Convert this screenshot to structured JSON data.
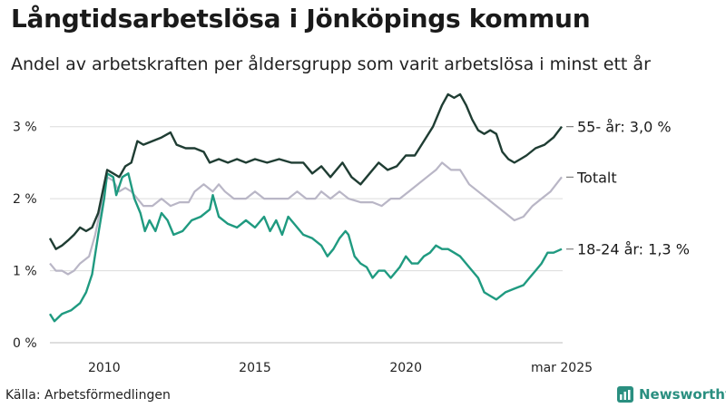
{
  "title": "Långtidsarbetslösa i Jönköpings kommun",
  "subtitle": "Andel av arbetskraften per åldersgrupp som varit arbetslösa i minst ett år",
  "source": "Källa: Arbetsförmedlingen",
  "brand": "Newsworthy",
  "colors": {
    "s55": "#1f3d33",
    "total": "#b9b6c6",
    "s1824": "#1f9a80",
    "grid": "#dcdcdc",
    "brand": "#2a8f80"
  },
  "chart_data": {
    "type": "line",
    "title": "Långtidsarbetslösa i Jönköpings kommun",
    "subtitle": "Andel av arbetskraften per åldersgrupp som varit arbetslösa i minst ett år",
    "xlabel": "",
    "ylabel": "",
    "xlim": [
      2008.2,
      2025.2
    ],
    "ylim": [
      0,
      3.5
    ],
    "x_ticks": [
      {
        "value": 2010,
        "label": "2010"
      },
      {
        "value": 2015,
        "label": "2015"
      },
      {
        "value": 2020,
        "label": "2020"
      },
      {
        "value": 2025.17,
        "label": "mar 2025"
      }
    ],
    "y_ticks": [
      {
        "value": 0,
        "label": "0 %"
      },
      {
        "value": 1,
        "label": "1 %"
      },
      {
        "value": 2,
        "label": "2 %"
      },
      {
        "value": 3,
        "label": "3 %"
      }
    ],
    "grid": true,
    "legend": "end-labels",
    "series": [
      {
        "key": "s55",
        "end_label": "55- år: 3,0 %",
        "points": [
          [
            2008.2,
            1.45
          ],
          [
            2008.4,
            1.3
          ],
          [
            2008.6,
            1.35
          ],
          [
            2008.8,
            1.42
          ],
          [
            2009.0,
            1.5
          ],
          [
            2009.2,
            1.6
          ],
          [
            2009.4,
            1.55
          ],
          [
            2009.6,
            1.6
          ],
          [
            2009.8,
            1.8
          ],
          [
            2010.0,
            2.2
          ],
          [
            2010.1,
            2.4
          ],
          [
            2010.3,
            2.35
          ],
          [
            2010.5,
            2.3
          ],
          [
            2010.7,
            2.45
          ],
          [
            2010.9,
            2.5
          ],
          [
            2011.1,
            2.8
          ],
          [
            2011.3,
            2.75
          ],
          [
            2011.6,
            2.8
          ],
          [
            2011.9,
            2.85
          ],
          [
            2012.2,
            2.92
          ],
          [
            2012.4,
            2.75
          ],
          [
            2012.7,
            2.7
          ],
          [
            2013.0,
            2.7
          ],
          [
            2013.3,
            2.65
          ],
          [
            2013.5,
            2.5
          ],
          [
            2013.8,
            2.55
          ],
          [
            2014.1,
            2.5
          ],
          [
            2014.4,
            2.55
          ],
          [
            2014.7,
            2.5
          ],
          [
            2015.0,
            2.55
          ],
          [
            2015.4,
            2.5
          ],
          [
            2015.8,
            2.55
          ],
          [
            2016.2,
            2.5
          ],
          [
            2016.6,
            2.5
          ],
          [
            2016.9,
            2.35
          ],
          [
            2017.2,
            2.45
          ],
          [
            2017.5,
            2.3
          ],
          [
            2017.9,
            2.5
          ],
          [
            2018.2,
            2.3
          ],
          [
            2018.5,
            2.2
          ],
          [
            2018.8,
            2.35
          ],
          [
            2019.1,
            2.5
          ],
          [
            2019.4,
            2.4
          ],
          [
            2019.7,
            2.45
          ],
          [
            2020.0,
            2.6
          ],
          [
            2020.3,
            2.6
          ],
          [
            2020.6,
            2.8
          ],
          [
            2020.9,
            3.0
          ],
          [
            2021.2,
            3.3
          ],
          [
            2021.4,
            3.45
          ],
          [
            2021.6,
            3.4
          ],
          [
            2021.8,
            3.45
          ],
          [
            2022.0,
            3.3
          ],
          [
            2022.2,
            3.1
          ],
          [
            2022.4,
            2.95
          ],
          [
            2022.6,
            2.9
          ],
          [
            2022.8,
            2.95
          ],
          [
            2023.0,
            2.9
          ],
          [
            2023.2,
            2.65
          ],
          [
            2023.4,
            2.55
          ],
          [
            2023.6,
            2.5
          ],
          [
            2023.8,
            2.55
          ],
          [
            2024.0,
            2.6
          ],
          [
            2024.3,
            2.7
          ],
          [
            2024.6,
            2.75
          ],
          [
            2024.9,
            2.85
          ],
          [
            2025.17,
            3.0
          ]
        ]
      },
      {
        "key": "total",
        "end_label": "Totalt",
        "points": [
          [
            2008.2,
            1.1
          ],
          [
            2008.4,
            1.0
          ],
          [
            2008.6,
            1.0
          ],
          [
            2008.8,
            0.95
          ],
          [
            2009.0,
            1.0
          ],
          [
            2009.2,
            1.1
          ],
          [
            2009.5,
            1.2
          ],
          [
            2009.7,
            1.5
          ],
          [
            2009.9,
            1.9
          ],
          [
            2010.1,
            2.3
          ],
          [
            2010.3,
            2.25
          ],
          [
            2010.5,
            2.1
          ],
          [
            2010.7,
            2.15
          ],
          [
            2010.9,
            2.1
          ],
          [
            2011.1,
            2.0
          ],
          [
            2011.3,
            1.9
          ],
          [
            2011.6,
            1.9
          ],
          [
            2011.9,
            2.0
          ],
          [
            2012.2,
            1.9
          ],
          [
            2012.5,
            1.95
          ],
          [
            2012.8,
            1.95
          ],
          [
            2013.0,
            2.1
          ],
          [
            2013.3,
            2.2
          ],
          [
            2013.6,
            2.1
          ],
          [
            2013.8,
            2.2
          ],
          [
            2014.0,
            2.1
          ],
          [
            2014.3,
            2.0
          ],
          [
            2014.7,
            2.0
          ],
          [
            2015.0,
            2.1
          ],
          [
            2015.3,
            2.0
          ],
          [
            2015.8,
            2.0
          ],
          [
            2016.1,
            2.0
          ],
          [
            2016.4,
            2.1
          ],
          [
            2016.7,
            2.0
          ],
          [
            2017.0,
            2.0
          ],
          [
            2017.2,
            2.1
          ],
          [
            2017.5,
            2.0
          ],
          [
            2017.8,
            2.1
          ],
          [
            2018.1,
            2.0
          ],
          [
            2018.5,
            1.95
          ],
          [
            2018.9,
            1.95
          ],
          [
            2019.2,
            1.9
          ],
          [
            2019.5,
            2.0
          ],
          [
            2019.8,
            2.0
          ],
          [
            2020.1,
            2.1
          ],
          [
            2020.4,
            2.2
          ],
          [
            2020.7,
            2.3
          ],
          [
            2021.0,
            2.4
          ],
          [
            2021.2,
            2.5
          ],
          [
            2021.5,
            2.4
          ],
          [
            2021.8,
            2.4
          ],
          [
            2022.1,
            2.2
          ],
          [
            2022.4,
            2.1
          ],
          [
            2022.7,
            2.0
          ],
          [
            2023.0,
            1.9
          ],
          [
            2023.3,
            1.8
          ],
          [
            2023.6,
            1.7
          ],
          [
            2023.9,
            1.75
          ],
          [
            2024.2,
            1.9
          ],
          [
            2024.5,
            2.0
          ],
          [
            2024.8,
            2.1
          ],
          [
            2025.17,
            2.3
          ]
        ]
      },
      {
        "key": "s1824",
        "end_label": "18-24 år: 1,3 %",
        "points": [
          [
            2008.2,
            0.4
          ],
          [
            2008.35,
            0.3
          ],
          [
            2008.6,
            0.4
          ],
          [
            2008.9,
            0.45
          ],
          [
            2009.2,
            0.55
          ],
          [
            2009.4,
            0.7
          ],
          [
            2009.6,
            0.95
          ],
          [
            2009.8,
            1.5
          ],
          [
            2010.0,
            2.0
          ],
          [
            2010.1,
            2.35
          ],
          [
            2010.3,
            2.3
          ],
          [
            2010.4,
            2.05
          ],
          [
            2010.6,
            2.3
          ],
          [
            2010.8,
            2.35
          ],
          [
            2011.0,
            2.0
          ],
          [
            2011.2,
            1.8
          ],
          [
            2011.35,
            1.55
          ],
          [
            2011.5,
            1.7
          ],
          [
            2011.7,
            1.55
          ],
          [
            2011.9,
            1.8
          ],
          [
            2012.1,
            1.7
          ],
          [
            2012.3,
            1.5
          ],
          [
            2012.6,
            1.55
          ],
          [
            2012.9,
            1.7
          ],
          [
            2013.2,
            1.75
          ],
          [
            2013.5,
            1.85
          ],
          [
            2013.6,
            2.05
          ],
          [
            2013.8,
            1.75
          ],
          [
            2014.1,
            1.65
          ],
          [
            2014.4,
            1.6
          ],
          [
            2014.7,
            1.7
          ],
          [
            2015.0,
            1.6
          ],
          [
            2015.3,
            1.75
          ],
          [
            2015.5,
            1.55
          ],
          [
            2015.7,
            1.7
          ],
          [
            2015.9,
            1.5
          ],
          [
            2016.1,
            1.75
          ],
          [
            2016.3,
            1.65
          ],
          [
            2016.6,
            1.5
          ],
          [
            2016.9,
            1.45
          ],
          [
            2017.2,
            1.35
          ],
          [
            2017.4,
            1.2
          ],
          [
            2017.6,
            1.3
          ],
          [
            2017.8,
            1.45
          ],
          [
            2018.0,
            1.55
          ],
          [
            2018.1,
            1.5
          ],
          [
            2018.3,
            1.2
          ],
          [
            2018.5,
            1.1
          ],
          [
            2018.7,
            1.05
          ],
          [
            2018.9,
            0.9
          ],
          [
            2019.1,
            1.0
          ],
          [
            2019.3,
            1.0
          ],
          [
            2019.5,
            0.9
          ],
          [
            2019.8,
            1.05
          ],
          [
            2020.0,
            1.2
          ],
          [
            2020.2,
            1.1
          ],
          [
            2020.4,
            1.1
          ],
          [
            2020.6,
            1.2
          ],
          [
            2020.8,
            1.25
          ],
          [
            2021.0,
            1.35
          ],
          [
            2021.2,
            1.3
          ],
          [
            2021.4,
            1.3
          ],
          [
            2021.6,
            1.25
          ],
          [
            2021.8,
            1.2
          ],
          [
            2022.0,
            1.1
          ],
          [
            2022.2,
            1.0
          ],
          [
            2022.4,
            0.9
          ],
          [
            2022.6,
            0.7
          ],
          [
            2022.8,
            0.65
          ],
          [
            2023.0,
            0.6
          ],
          [
            2023.3,
            0.7
          ],
          [
            2023.6,
            0.75
          ],
          [
            2023.9,
            0.8
          ],
          [
            2024.1,
            0.9
          ],
          [
            2024.3,
            1.0
          ],
          [
            2024.5,
            1.1
          ],
          [
            2024.7,
            1.25
          ],
          [
            2024.9,
            1.25
          ],
          [
            2025.17,
            1.3
          ]
        ]
      }
    ]
  }
}
